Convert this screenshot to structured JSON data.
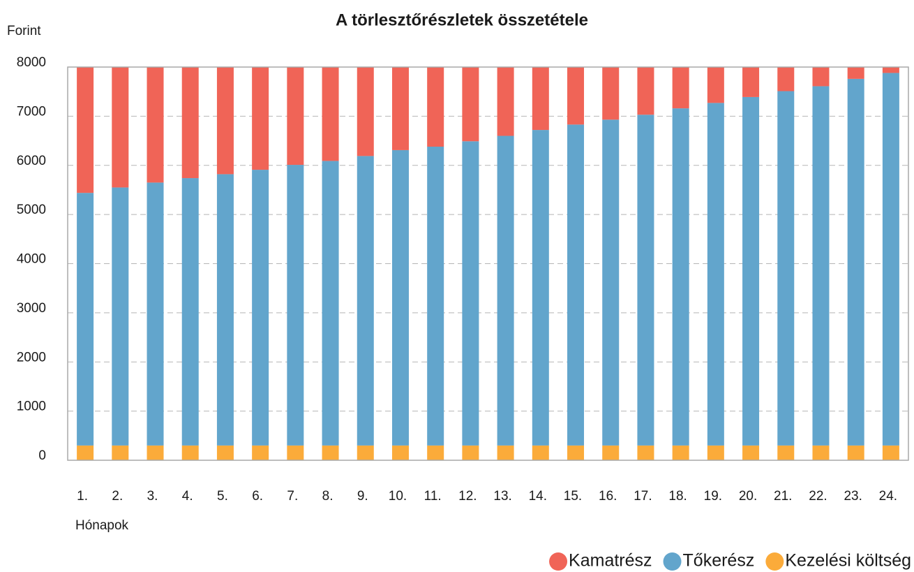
{
  "chart_data": {
    "type": "stacked_bar",
    "title": "A törlesztőrészletek összetétele",
    "y_label": "Forint",
    "x_label": "Hónapok",
    "categories": [
      "1.",
      "2.",
      "3.",
      "4.",
      "5.",
      "6.",
      "7.",
      "8.",
      "9.",
      "10.",
      "11.",
      "12.",
      "13.",
      "14.",
      "15.",
      "16.",
      "17.",
      "18.",
      "19.",
      "20.",
      "21.",
      "22.",
      "23.",
      "24."
    ],
    "series": [
      {
        "name": "Kamatrész",
        "color": "#f06457",
        "values": [
          2560,
          2450,
          2350,
          2260,
          2180,
          2090,
          1990,
          1910,
          1810,
          1690,
          1620,
          1510,
          1400,
          1280,
          1170,
          1070,
          970,
          840,
          730,
          610,
          490,
          390,
          240,
          120
        ]
      },
      {
        "name": "Tőkerész",
        "color": "#62a5cc",
        "values": [
          5140,
          5250,
          5350,
          5440,
          5520,
          5610,
          5710,
          5790,
          5890,
          6010,
          6080,
          6190,
          6300,
          6420,
          6530,
          6630,
          6730,
          6860,
          6970,
          7090,
          7210,
          7310,
          7460,
          7580
        ]
      },
      {
        "name": "Kezelési költség",
        "color": "#fbab3a",
        "values": [
          300,
          300,
          300,
          300,
          300,
          300,
          300,
          300,
          300,
          300,
          300,
          300,
          300,
          300,
          300,
          300,
          300,
          300,
          300,
          300,
          300,
          300,
          300,
          300
        ]
      }
    ],
    "ylim": [
      0,
      8000
    ],
    "yticks": [
      0,
      1000,
      2000,
      3000,
      4000,
      5000,
      6000,
      7000,
      8000
    ],
    "grid": true,
    "legend": "bottom-right"
  }
}
